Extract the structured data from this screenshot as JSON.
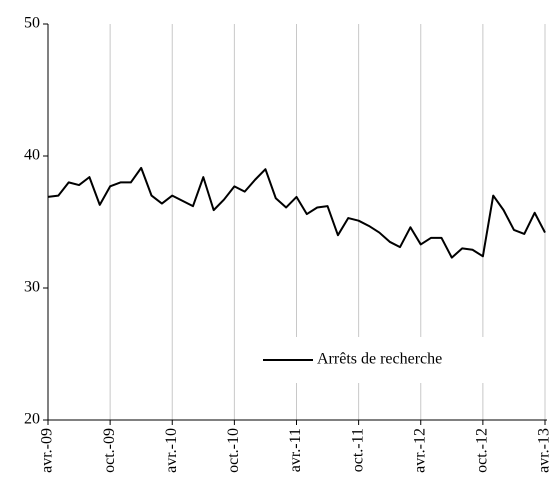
{
  "chart_data": {
    "type": "line",
    "categories": [
      "avr.-09",
      null,
      null,
      null,
      null,
      null,
      "oct.-09",
      null,
      null,
      null,
      null,
      null,
      "avr.-10",
      null,
      null,
      null,
      null,
      null,
      "oct.-10",
      null,
      null,
      null,
      null,
      null,
      "avr.-11",
      null,
      null,
      null,
      null,
      null,
      "oct.-11",
      null,
      null,
      null,
      null,
      null,
      "avr.-12",
      null,
      null,
      null,
      null,
      null,
      "oct.-12",
      null,
      null,
      null,
      null,
      null,
      "avr.-13"
    ],
    "series": [
      {
        "name": "Arrêts de recherche",
        "color": "#000000",
        "values": [
          36.9,
          37.0,
          38.0,
          37.8,
          38.4,
          36.3,
          37.7,
          38.0,
          38.0,
          39.1,
          37.0,
          36.4,
          37.0,
          36.6,
          36.2,
          38.4,
          35.9,
          36.7,
          37.7,
          37.3,
          38.2,
          39.0,
          36.8,
          36.1,
          36.9,
          35.6,
          36.1,
          36.2,
          34.0,
          35.3,
          35.1,
          34.7,
          34.2,
          33.5,
          33.1,
          34.6,
          33.3,
          33.8,
          33.8,
          32.3,
          33.0,
          32.9,
          32.4,
          37.0,
          35.9,
          34.4,
          34.1,
          35.7,
          34.2
        ]
      }
    ],
    "ylim": [
      20,
      50
    ],
    "yticks": [
      20,
      30,
      40,
      50
    ],
    "grid": "x",
    "legend": "lower right"
  }
}
